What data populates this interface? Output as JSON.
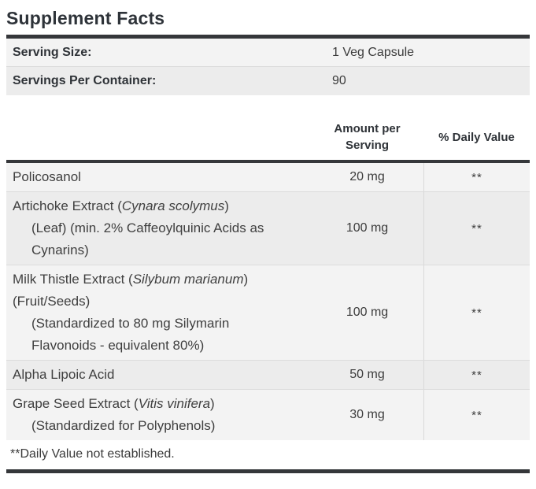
{
  "title": "Supplement Facts",
  "serving": {
    "rows": [
      {
        "label": "Serving Size:",
        "value": "1 Veg Capsule"
      },
      {
        "label": "Servings Per Container:",
        "value": "90"
      }
    ]
  },
  "table": {
    "headers": {
      "amount": "Amount per Serving",
      "daily_value": "% Daily Value"
    },
    "rows": [
      {
        "name_lines": [
          {
            "indent": false,
            "segments": [
              {
                "text": "Policosanol",
                "italic": false
              }
            ]
          }
        ],
        "amount": "20 mg",
        "daily_value": "**"
      },
      {
        "name_lines": [
          {
            "indent": false,
            "segments": [
              {
                "text": "Artichoke Extract (",
                "italic": false
              },
              {
                "text": "Cynara scolymus",
                "italic": true
              },
              {
                "text": ")",
                "italic": false
              }
            ]
          },
          {
            "indent": true,
            "segments": [
              {
                "text": "(Leaf) (min. 2% Caffeoylquinic Acids as",
                "italic": false
              }
            ]
          },
          {
            "indent": true,
            "segments": [
              {
                "text": "Cynarins)",
                "italic": false
              }
            ]
          }
        ],
        "amount": "100 mg",
        "daily_value": "**"
      },
      {
        "name_lines": [
          {
            "indent": false,
            "segments": [
              {
                "text": "Milk Thistle Extract (",
                "italic": false
              },
              {
                "text": "Silybum marianum",
                "italic": true
              },
              {
                "text": ")",
                "italic": false
              }
            ]
          },
          {
            "indent": false,
            "segments": [
              {
                "text": "(Fruit/Seeds)",
                "italic": false
              }
            ]
          },
          {
            "indent": true,
            "segments": [
              {
                "text": "(Standardized to 80 mg Silymarin",
                "italic": false
              }
            ]
          },
          {
            "indent": true,
            "segments": [
              {
                "text": "Flavonoids - equivalent 80%)",
                "italic": false
              }
            ]
          }
        ],
        "amount": "100 mg",
        "daily_value": "**"
      },
      {
        "name_lines": [
          {
            "indent": false,
            "segments": [
              {
                "text": "Alpha Lipoic Acid",
                "italic": false
              }
            ]
          }
        ],
        "amount": "50 mg",
        "daily_value": "**"
      },
      {
        "name_lines": [
          {
            "indent": false,
            "segments": [
              {
                "text": "Grape Seed Extract (",
                "italic": false
              },
              {
                "text": "Vitis vinifera",
                "italic": true
              },
              {
                "text": ")",
                "italic": false
              }
            ]
          },
          {
            "indent": true,
            "segments": [
              {
                "text": "(Standardized for Polyphenols)",
                "italic": false
              }
            ]
          }
        ],
        "amount": "30 mg",
        "daily_value": "**"
      }
    ],
    "footnote": "**Daily Value not established."
  },
  "colors": {
    "rule_dark": "#35373a",
    "row_light": "#f3f3f3",
    "row_shaded": "#ececec",
    "separator": "#dcdcdc",
    "title_text": "#2e3339",
    "body_text": "#3f3f3f"
  }
}
